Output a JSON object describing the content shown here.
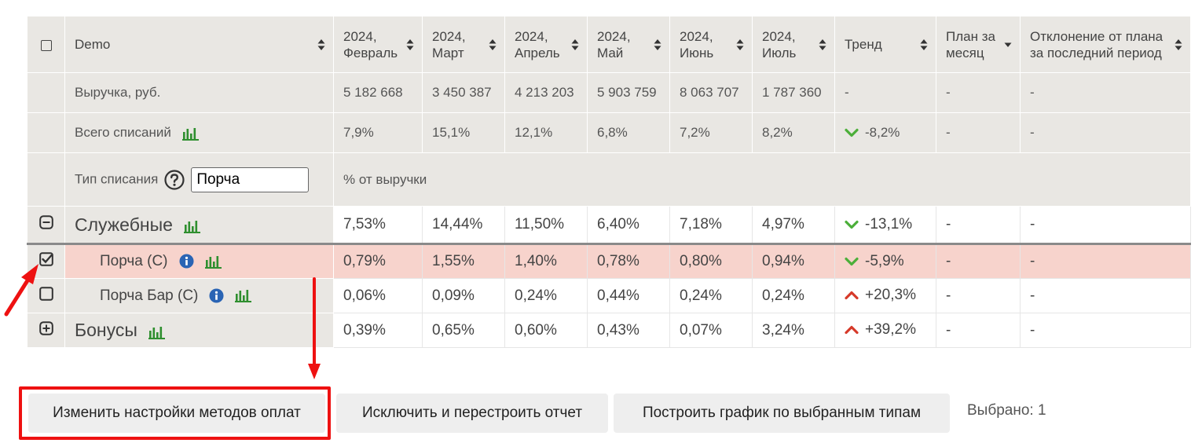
{
  "header": {
    "name_col": "Demo",
    "months": [
      "2024, Февраль",
      "2024, Март",
      "2024, Апрель",
      "2024, Май",
      "2024, Июнь",
      "2024, Июль"
    ],
    "trend": "Тренд",
    "plan": "План за месяц",
    "deviation": "Отклонение от плана за последний период"
  },
  "revenue_row": {
    "label": "Выручка, руб.",
    "values": [
      "5 182 668",
      "3 450 387",
      "4 213 203",
      "5 903 759",
      "8 063 707",
      "1 787 360"
    ],
    "trend": "-",
    "plan": "-",
    "deviation": "-"
  },
  "total_row": {
    "label": "Всего списаний",
    "values": [
      "7,9%",
      "15,1%",
      "12,1%",
      "6,8%",
      "7,2%",
      "8,2%"
    ],
    "trend": "-8,2%",
    "trend_dir": "down",
    "plan": "-",
    "deviation": "-"
  },
  "type_row": {
    "label": "Тип списания",
    "input_value": "Порча",
    "note": "% от выручки"
  },
  "rows": [
    {
      "label": "Служебные",
      "kind": "group",
      "expander": "minus",
      "values": [
        "7,53%",
        "14,44%",
        "11,50%",
        "6,40%",
        "7,18%",
        "4,97%"
      ],
      "trend": "-13,1%",
      "trend_dir": "down",
      "plan": "-",
      "deviation": "-"
    },
    {
      "label": "Порча (С)",
      "kind": "sub",
      "checked": true,
      "values": [
        "0,79%",
        "1,55%",
        "1,40%",
        "0,78%",
        "0,80%",
        "0,94%"
      ],
      "trend": "-5,9%",
      "trend_dir": "down",
      "plan": "-",
      "deviation": "-"
    },
    {
      "label": "Порча Бар (С)",
      "kind": "sub",
      "checked": false,
      "values": [
        "0,06%",
        "0,09%",
        "0,24%",
        "0,44%",
        "0,24%",
        "0,24%"
      ],
      "trend": "+20,3%",
      "trend_dir": "up",
      "plan": "-",
      "deviation": "-"
    },
    {
      "label": "Бонусы",
      "kind": "group",
      "expander": "plus",
      "values": [
        "0,39%",
        "0,65%",
        "0,60%",
        "0,43%",
        "0,07%",
        "3,24%"
      ],
      "trend": "+39,2%",
      "trend_dir": "up",
      "plan": "-",
      "deviation": "-"
    }
  ],
  "buttons": {
    "payment_settings": "Изменить настройки методов оплат",
    "exclude_rebuild": "Исключить и перестроить отчет",
    "build_chart": "Построить график по выбранным типам"
  },
  "selected_text": "Выбрано: 1",
  "colors": {
    "trend_down": "#4caf3a",
    "trend_up": "#d63a2a",
    "chart_icon": "#2f8f2f",
    "info_icon": "#2a64b4",
    "highlight": "#ee1111",
    "selected_row": "#f7d3cc"
  }
}
